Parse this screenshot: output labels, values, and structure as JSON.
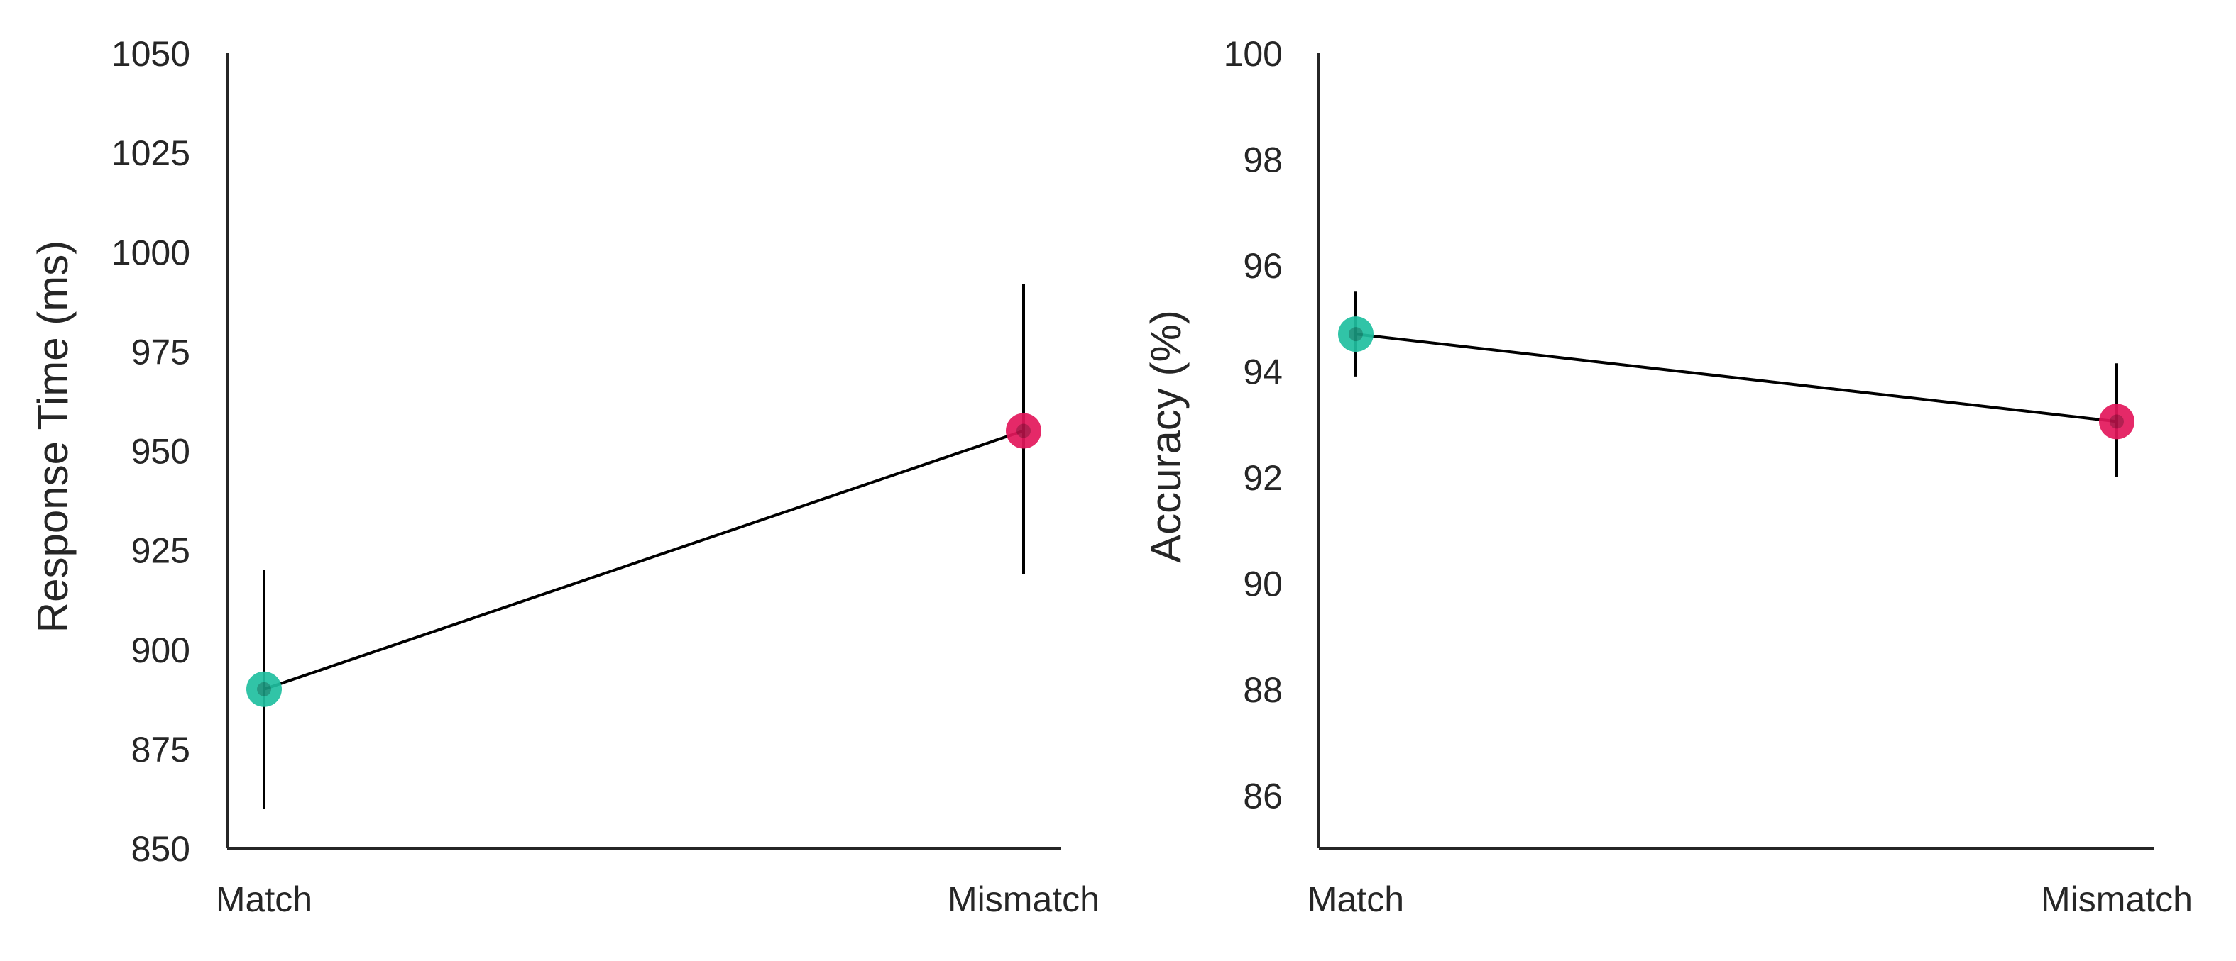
{
  "chart_data": [
    {
      "type": "line",
      "categories": [
        "Match",
        "Mismatch"
      ],
      "values": [
        890,
        955
      ],
      "error_bars": [
        [
          860,
          920
        ],
        [
          919,
          992
        ]
      ],
      "ylabel": "Response Time (ms)",
      "xlabel": "",
      "ylim": [
        850,
        1050
      ],
      "yticks": [
        "850",
        "875",
        "900",
        "925",
        "950",
        "975",
        "1000",
        "1025",
        "1050"
      ],
      "point_colors": [
        "#1fbf9f",
        "#e3175b"
      ],
      "grid": false
    },
    {
      "type": "line",
      "categories": [
        "Match",
        "Mismatch"
      ],
      "values": [
        94.7,
        93.05
      ],
      "error_bars": [
        [
          93.9,
          95.5
        ],
        [
          92.0,
          94.15
        ]
      ],
      "ylabel": "Accuracy (%)",
      "xlabel": "",
      "ylim": [
        85,
        100
      ],
      "yticks": [
        "86",
        "88",
        "90",
        "92",
        "94",
        "96",
        "98",
        "100"
      ],
      "point_colors": [
        "#1fbf9f",
        "#e3175b"
      ],
      "grid": false
    }
  ]
}
